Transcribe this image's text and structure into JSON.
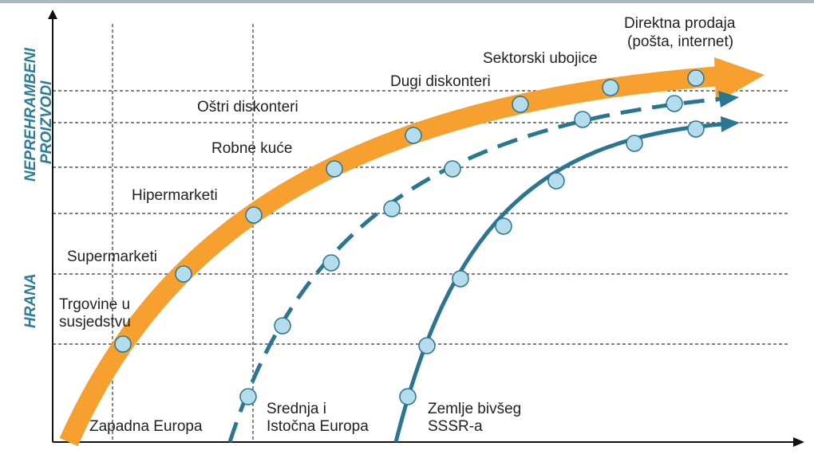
{
  "diagram": {
    "y_axis_labels": {
      "upper_line1": "NEPREHRAMBENI",
      "upper_line2": "PROIZVODI",
      "lower": "HRANA"
    },
    "store_formats": [
      {
        "line1": "Trgovine u",
        "line2": "susjedstvu"
      },
      {
        "line1": "Supermarketi"
      },
      {
        "line1": "Hipermarketi"
      },
      {
        "line1": "Robne kuće"
      },
      {
        "line1": "Oštri diskonteri"
      },
      {
        "line1": "Dugi diskonteri"
      },
      {
        "line1": "Sektorski ubojice"
      },
      {
        "line1": "Direktna prodaja",
        "line2": "(pošta, internet)"
      }
    ],
    "regions": [
      {
        "line1": "Zapadna Europa",
        "style": "thick-orange-arrow",
        "color": "#f7a030"
      },
      {
        "line1": "Srednja i",
        "line2": "Istočna Europa",
        "style": "dashed-blue-arrow",
        "color": "#2a7691"
      },
      {
        "line1": "Zemlje bivšeg",
        "line2": "SSSR-a",
        "style": "solid-blue-arrow",
        "color": "#2a7691"
      }
    ],
    "colors": {
      "orange": "#f7a030",
      "blue": "#2a7691",
      "marker_fill": "#b4dcec",
      "marker_stroke": "#2a7691",
      "axis_label": "#2b7d9a",
      "gridline": "#333333"
    }
  }
}
